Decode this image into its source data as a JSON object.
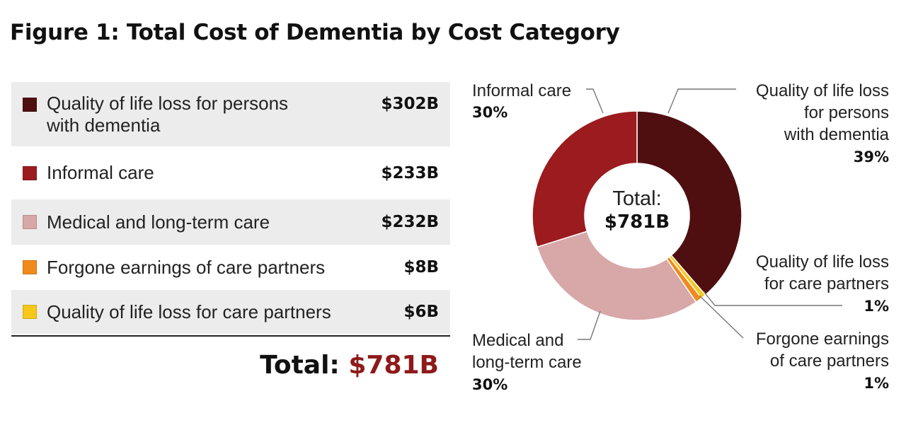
{
  "title": "Figure 1: Total Cost of Dementia by Cost Category",
  "table": {
    "rows": [
      {
        "label_line1": "Quality of life loss for persons",
        "label_line2": "with dementia",
        "value": "$302B",
        "color": "#4f0f10"
      },
      {
        "label": "Informal care",
        "value": "$233B",
        "color": "#9b1b1f"
      },
      {
        "label": "Medical and long-term care",
        "value": "$232B",
        "color": "#d8a7a8"
      },
      {
        "label": "Forgone earnings of care partners",
        "value": "$8B",
        "color": "#f08a1c"
      },
      {
        "label": "Quality of life loss for care partners",
        "value": "$6B",
        "color": "#f7c81a"
      }
    ],
    "total_label": "Total:",
    "total_value": "$781B"
  },
  "chart_data": {
    "type": "pie",
    "variant": "donut",
    "center_label": "Total:",
    "center_value": "$781B",
    "slices": [
      {
        "name": "Quality of life loss for persons with dementia",
        "value": 302,
        "percent_label": "39%",
        "color": "#4f0f10"
      },
      {
        "name": "Quality of life loss for care partners",
        "value": 6,
        "percent_label": "1%",
        "color": "#f7c81a"
      },
      {
        "name": "Forgone earnings of care partners",
        "value": 8,
        "percent_label": "1%",
        "color": "#f08a1c"
      },
      {
        "name": "Medical and long-term care",
        "value": 232,
        "percent_label": "30%",
        "color": "#d8a7a8"
      },
      {
        "name": "Informal care",
        "value": 233,
        "percent_label": "30%",
        "color": "#9b1b1f"
      }
    ],
    "callouts": {
      "qol_persons": {
        "lines": [
          "Quality of life loss",
          "for persons",
          "with dementia"
        ],
        "pct": "39%"
      },
      "informal": {
        "lines": [
          "Informal care"
        ],
        "pct": "30%"
      },
      "medical": {
        "lines": [
          "Medical and",
          "long-term care"
        ],
        "pct": "30%"
      },
      "qol_partners": {
        "lines": [
          "Quality of life loss",
          "for care partners"
        ],
        "pct": "1%"
      },
      "forgone": {
        "lines": [
          "Forgone earnings",
          "of care partners"
        ],
        "pct": "1%"
      }
    }
  }
}
